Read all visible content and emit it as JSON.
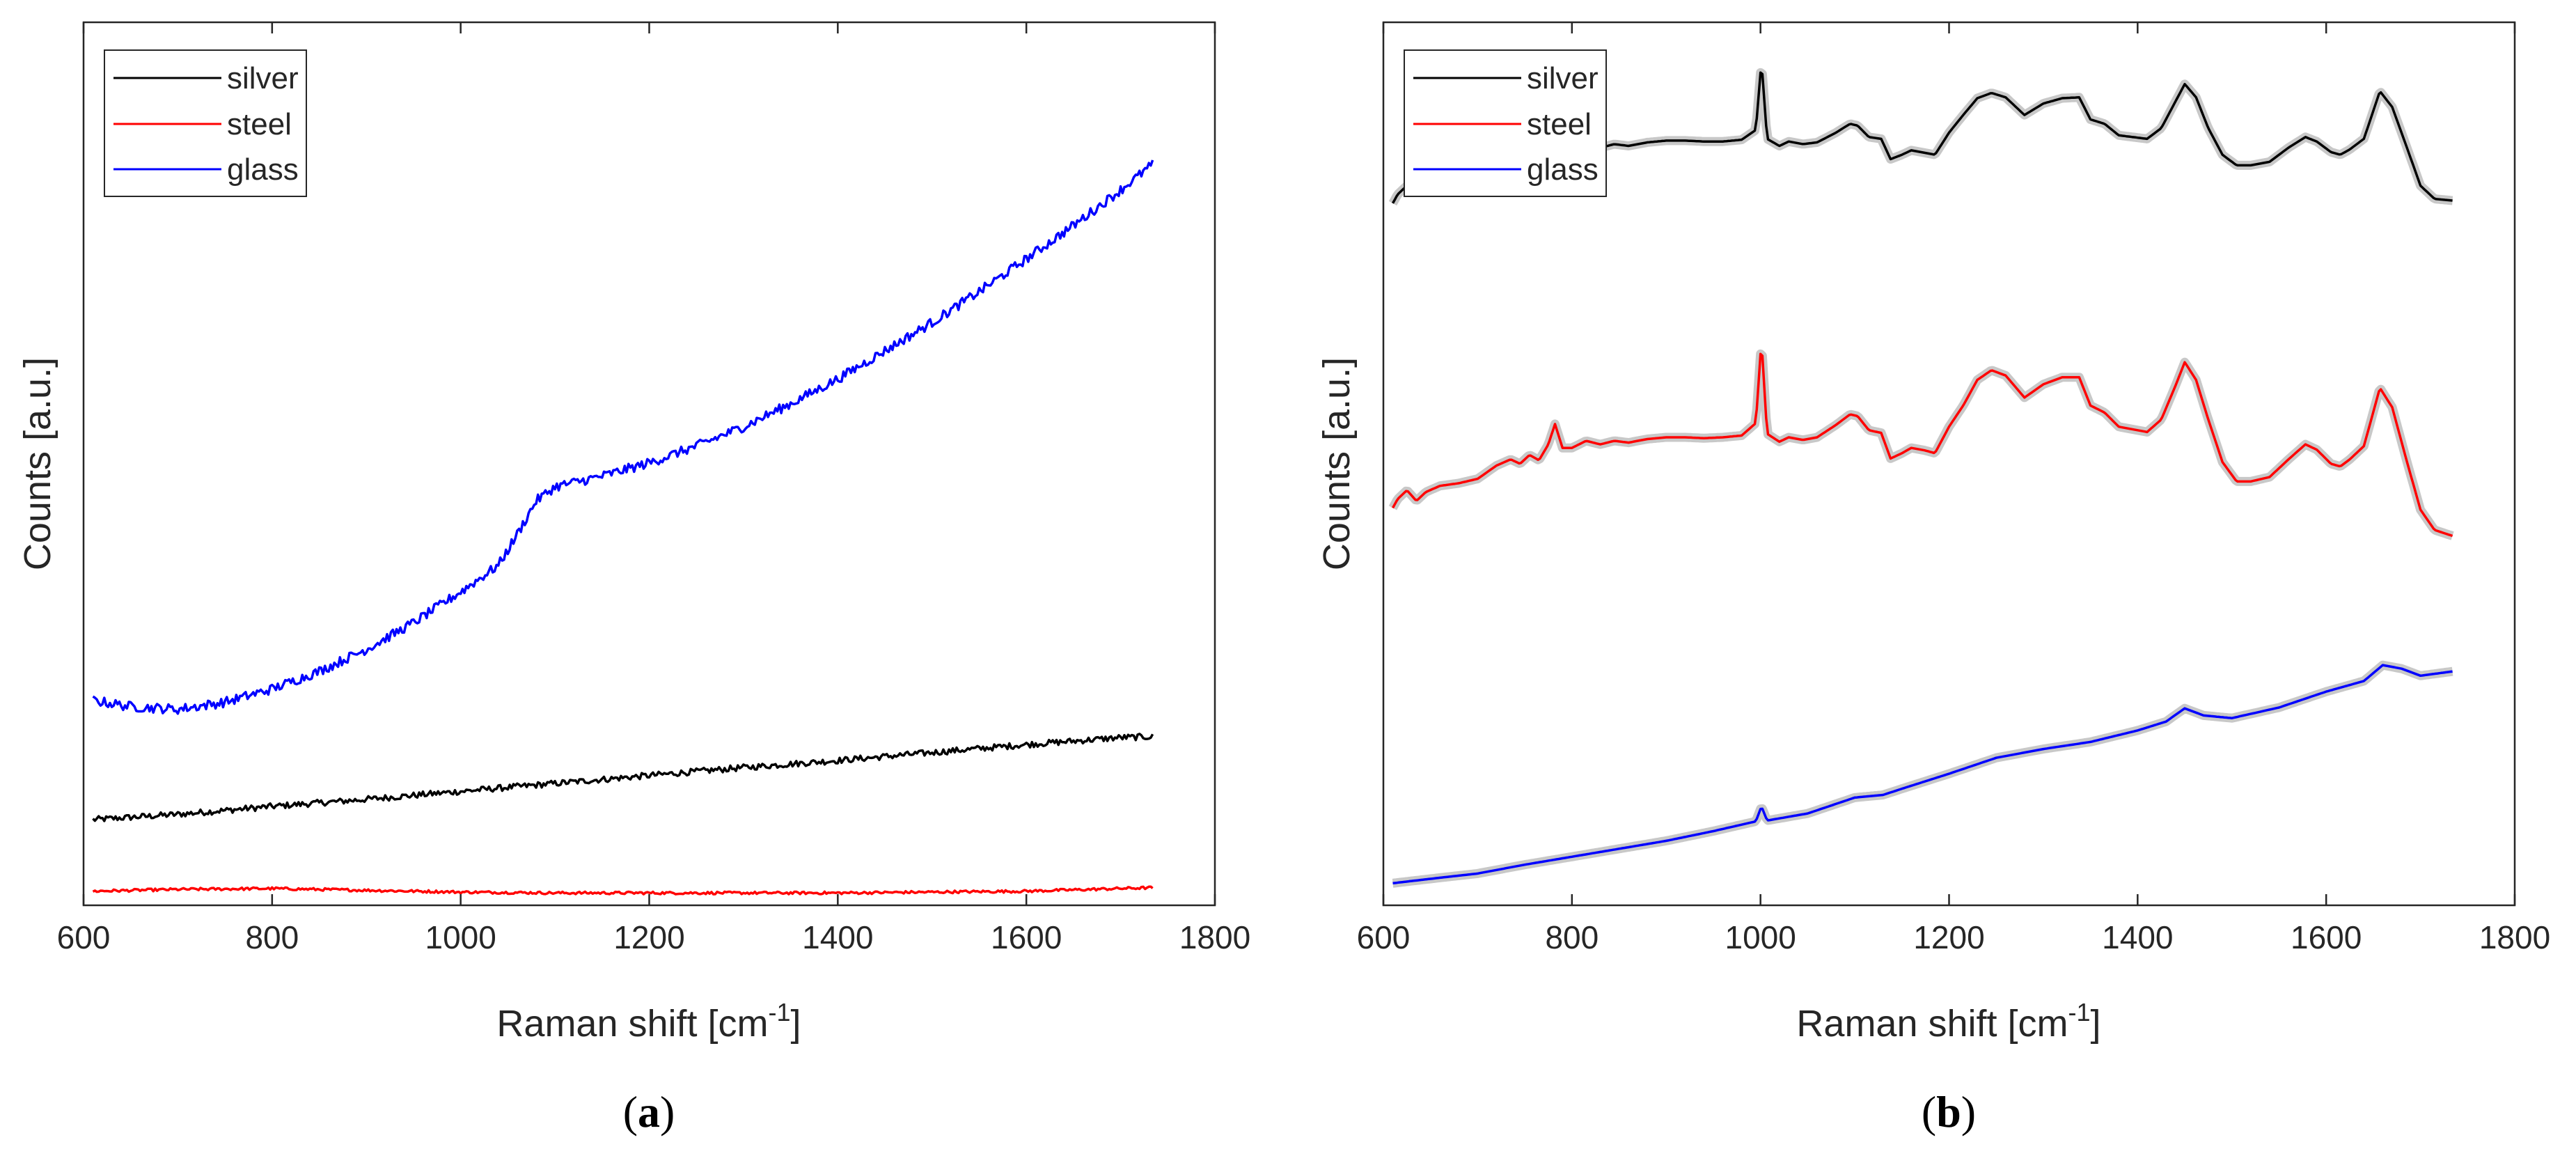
{
  "chart_data": [
    {
      "type": "line",
      "panel_label": "(a)",
      "panel_letter": "a",
      "xlabel": "Raman shift [cm⁻¹]",
      "xlabel_main": "Raman shift [cm",
      "xlabel_sup": "-1",
      "xlabel_end": "]",
      "ylabel": "Counts [a.u.]",
      "xlim": [
        600,
        1800
      ],
      "ylim": [
        0,
        100
      ],
      "x_ticks": [
        600,
        800,
        1000,
        1200,
        1400,
        1600,
        1800
      ],
      "y_ticks": [],
      "legend": {
        "position": "top-left",
        "entries": [
          "silver",
          "steel",
          "glass"
        ]
      },
      "series": [
        {
          "name": "silver",
          "color": "#000000",
          "x": [
            610,
            700,
            800,
            900,
            1000,
            1100,
            1200,
            1300,
            1400,
            1500,
            1600,
            1700,
            1735
          ],
          "y": [
            9.7,
            10.3,
            11.2,
            12.0,
            12.9,
            13.8,
            14.7,
            15.6,
            16.4,
            17.3,
            18.2,
            19.0,
            19.1
          ],
          "noise": 0.35
        },
        {
          "name": "steel",
          "color": "#ff0000",
          "x": [
            610,
            700,
            800,
            900,
            1000,
            1100,
            1200,
            1300,
            1400,
            1500,
            1600,
            1700,
            1735
          ],
          "y": [
            1.6,
            1.8,
            1.9,
            1.7,
            1.5,
            1.4,
            1.4,
            1.4,
            1.4,
            1.5,
            1.6,
            1.9,
            2.0
          ],
          "noise": 0.15
        },
        {
          "name": "glass",
          "color": "#0000ff",
          "x": [
            610,
            650,
            700,
            750,
            800,
            850,
            900,
            950,
            1000,
            1040,
            1060,
            1080,
            1100,
            1150,
            1200,
            1250,
            1300,
            1350,
            1400,
            1450,
            1500,
            1550,
            1600,
            1650,
            1700,
            1735
          ],
          "y": [
            23.2,
            22.5,
            22.2,
            23.0,
            24.5,
            26.5,
            29.0,
            32.0,
            35.5,
            38.5,
            42.0,
            45.8,
            47.4,
            48.6,
            50.1,
            52.0,
            54.2,
            56.8,
            59.6,
            62.8,
            66.0,
            69.5,
            73.2,
            77.0,
            81.0,
            84.0
          ],
          "noise": 0.55
        }
      ]
    },
    {
      "type": "line",
      "panel_label": "(b)",
      "panel_letter": "b",
      "xlabel": "Raman shift [cm⁻¹]",
      "xlabel_main": "Raman shift [cm",
      "xlabel_sup": "-1",
      "xlabel_end": "]",
      "ylabel": "Counts [a.u.]",
      "xlim": [
        600,
        1800
      ],
      "ylim": [
        0,
        100
      ],
      "x_ticks": [
        600,
        800,
        1000,
        1200,
        1400,
        1600,
        1800
      ],
      "y_ticks": [],
      "legend": {
        "position": "top-left",
        "entries": [
          "silver",
          "steel",
          "glass"
        ]
      },
      "shaded_band_color": "#c8c8c8",
      "series": [
        {
          "name": "silver",
          "color": "#000000",
          "x": [
            610,
            615,
            625,
            635,
            645,
            660,
            680,
            700,
            720,
            735,
            745,
            755,
            765,
            775,
            782,
            790,
            800,
            815,
            830,
            845,
            860,
            880,
            900,
            920,
            940,
            960,
            980,
            995,
            1001,
            1007,
            1020,
            1030,
            1045,
            1060,
            1080,
            1095,
            1103,
            1115,
            1128,
            1138,
            1150,
            1160,
            1175,
            1185,
            1200,
            1215,
            1230,
            1245,
            1260,
            1280,
            1300,
            1320,
            1338,
            1350,
            1365,
            1380,
            1395,
            1410,
            1425,
            1440,
            1450,
            1462,
            1475,
            1490,
            1505,
            1520,
            1540,
            1560,
            1578,
            1590,
            1605,
            1615,
            1625,
            1640,
            1657,
            1670,
            1685,
            1700,
            1715,
            1735
          ],
          "y": [
            79.5,
            80.5,
            81.5,
            80.8,
            81.5,
            82.0,
            82.2,
            82.6,
            84.0,
            84.5,
            84.2,
            85.0,
            84.5,
            86.0,
            87.8,
            85.5,
            85.5,
            86.2,
            85.8,
            86.2,
            86.0,
            86.4,
            86.6,
            86.6,
            86.5,
            86.5,
            86.7,
            87.8,
            95.6,
            86.8,
            86.0,
            86.5,
            86.2,
            86.4,
            87.5,
            88.5,
            88.3,
            87.0,
            86.8,
            84.5,
            85.0,
            85.5,
            85.2,
            85.0,
            87.5,
            89.5,
            91.4,
            92.0,
            91.5,
            89.5,
            90.8,
            91.4,
            91.5,
            89.0,
            88.5,
            87.2,
            87.0,
            86.8,
            88.0,
            91.0,
            93.0,
            91.5,
            88.0,
            85.0,
            83.8,
            83.8,
            84.2,
            85.8,
            87.0,
            86.5,
            85.3,
            85.0,
            85.6,
            86.8,
            92.2,
            90.4,
            86.0,
            81.5,
            80.0,
            79.8
          ],
          "noise": 0
        },
        {
          "name": "steel",
          "color": "#ff0000",
          "x": [
            610,
            615,
            625,
            635,
            645,
            660,
            680,
            700,
            720,
            735,
            745,
            755,
            765,
            775,
            782,
            790,
            800,
            815,
            830,
            845,
            860,
            880,
            900,
            920,
            940,
            960,
            980,
            995,
            1001,
            1007,
            1020,
            1030,
            1045,
            1060,
            1080,
            1095,
            1103,
            1115,
            1128,
            1138,
            1150,
            1160,
            1175,
            1185,
            1200,
            1215,
            1230,
            1245,
            1260,
            1280,
            1300,
            1320,
            1338,
            1350,
            1365,
            1380,
            1395,
            1410,
            1425,
            1440,
            1450,
            1462,
            1475,
            1490,
            1505,
            1520,
            1540,
            1560,
            1578,
            1590,
            1605,
            1615,
            1625,
            1640,
            1657,
            1670,
            1685,
            1700,
            1715,
            1735
          ],
          "y": [
            45.0,
            46.0,
            47.0,
            45.8,
            46.8,
            47.5,
            47.8,
            48.3,
            49.8,
            50.5,
            50.0,
            51.0,
            50.4,
            52.2,
            54.5,
            51.8,
            51.8,
            52.6,
            52.2,
            52.6,
            52.4,
            52.8,
            53.0,
            53.0,
            52.9,
            53.0,
            53.2,
            54.6,
            64.0,
            53.4,
            52.5,
            53.0,
            52.7,
            53.0,
            54.4,
            55.6,
            55.4,
            53.8,
            53.5,
            50.6,
            51.2,
            51.8,
            51.5,
            51.2,
            54.2,
            56.6,
            59.5,
            60.6,
            60.0,
            57.5,
            59.0,
            59.8,
            59.8,
            56.6,
            55.8,
            54.2,
            53.9,
            53.6,
            55.0,
            58.8,
            61.5,
            59.5,
            55.0,
            50.2,
            48.0,
            48.0,
            48.5,
            50.5,
            52.2,
            51.6,
            50.0,
            49.7,
            50.5,
            52.0,
            58.6,
            56.4,
            50.5,
            44.8,
            42.5,
            41.8
          ],
          "noise": 0
        },
        {
          "name": "glass",
          "color": "#0000ff",
          "x": [
            610,
            650,
            700,
            750,
            800,
            850,
            900,
            950,
            995,
            1001,
            1007,
            1050,
            1100,
            1130,
            1150,
            1200,
            1250,
            1300,
            1350,
            1400,
            1430,
            1450,
            1470,
            1500,
            1550,
            1600,
            1640,
            1660,
            1680,
            1700,
            1735
          ],
          "y": [
            2.5,
            3.0,
            3.6,
            4.6,
            5.5,
            6.4,
            7.3,
            8.4,
            9.5,
            11.2,
            9.6,
            10.4,
            12.2,
            12.5,
            13.2,
            14.9,
            16.7,
            17.7,
            18.5,
            19.8,
            20.8,
            22.3,
            21.5,
            21.2,
            22.4,
            24.2,
            25.4,
            27.2,
            26.8,
            26.0,
            26.5
          ],
          "noise": 0
        }
      ]
    }
  ]
}
